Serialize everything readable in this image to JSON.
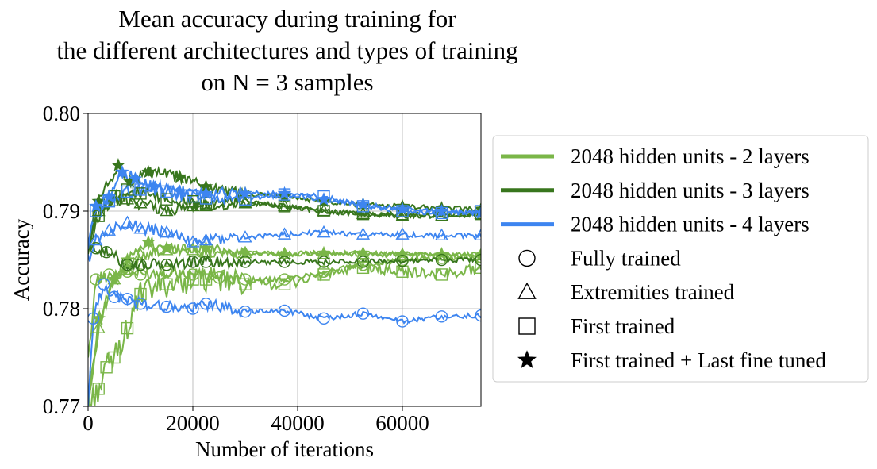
{
  "chart_data": {
    "type": "line",
    "title_lines": [
      "Mean accuracy during training for",
      "the different architectures and types of training",
      "on N = 3 samples"
    ],
    "xlabel": "Number of iterations",
    "ylabel": "Accuracy",
    "xlim": [
      0,
      75000
    ],
    "ylim": [
      0.77,
      0.8
    ],
    "xticks": [
      0,
      20000,
      40000,
      60000
    ],
    "xtick_labels": [
      "0",
      "20000",
      "40000",
      "60000"
    ],
    "yticks": [
      0.77,
      0.78,
      0.79,
      0.8
    ],
    "ytick_labels": [
      "0.77",
      "0.78",
      "0.79",
      "0.80"
    ],
    "grid": true,
    "legend_position": "outside-right",
    "colors": {
      "light_green": "#7ab648",
      "dark_green": "#38761d",
      "blue": "#3d85f0"
    },
    "legend_entries": [
      {
        "label": "2048 hidden units - 2 layers",
        "symbol": "line",
        "color": "#7ab648"
      },
      {
        "label": "2048 hidden units - 3 layers",
        "symbol": "line",
        "color": "#38761d"
      },
      {
        "label": "2048 hidden units - 4 layers",
        "symbol": "line",
        "color": "#3d85f0"
      },
      {
        "label": "Fully trained",
        "symbol": "circle",
        "color": "#000000"
      },
      {
        "label": "Extremities trained",
        "symbol": "triangle",
        "color": "#000000"
      },
      {
        "label": "First trained",
        "symbol": "square",
        "color": "#000000"
      },
      {
        "label": "First trained + Last fine tuned",
        "symbol": "star",
        "color": "#000000"
      }
    ],
    "series": [
      {
        "architecture": "2 layers",
        "training": "Fully trained",
        "color": "#7ab648",
        "marker": "circle",
        "x": [
          0,
          1500,
          4000,
          7500,
          10000,
          15000,
          20000,
          25000,
          30000,
          37500,
          45000,
          52500,
          60000,
          67500,
          75000
        ],
        "y": [
          0.7745,
          0.783,
          0.7835,
          0.7838,
          0.7835,
          0.7838,
          0.7835,
          0.7832,
          0.783,
          0.783,
          0.7838,
          0.7845,
          0.785,
          0.7852,
          0.7853
        ]
      },
      {
        "architecture": "2 layers",
        "training": "Extremities trained",
        "color": "#7ab648",
        "marker": "triangle",
        "x": [
          0,
          2000,
          5000,
          7500,
          10000,
          15000,
          20000,
          22500,
          30000,
          37500,
          45000,
          52500,
          60000,
          67500,
          75000
        ],
        "y": [
          0.77,
          0.778,
          0.783,
          0.784,
          0.7855,
          0.786,
          0.786,
          0.7858,
          0.7857,
          0.7856,
          0.7856,
          0.7856,
          0.7855,
          0.7855,
          0.7855
        ]
      },
      {
        "architecture": "2 layers",
        "training": "First trained",
        "color": "#7ab648",
        "marker": "square",
        "x": [
          0,
          2000,
          3500,
          5000,
          7500,
          10000,
          15000,
          20000,
          22500,
          30000,
          37500,
          45000,
          52500,
          60000,
          67500,
          75000
        ],
        "y": [
          0.77,
          0.7718,
          0.774,
          0.775,
          0.778,
          0.7815,
          0.7825,
          0.783,
          0.783,
          0.7825,
          0.7825,
          0.7835,
          0.7842,
          0.7838,
          0.7835,
          0.7842
        ]
      },
      {
        "architecture": "2 layers",
        "training": "First trained + Last fine tuned",
        "color": "#7ab648",
        "marker": "star",
        "x": [
          0,
          2000,
          5000,
          7500,
          11500,
          15000,
          22500,
          30000,
          37500,
          45000,
          52500,
          60000,
          67500,
          75000
        ],
        "y": [
          0.77,
          0.779,
          0.783,
          0.785,
          0.7868,
          0.7862,
          0.7862,
          0.7857,
          0.7856,
          0.7857,
          0.7857,
          0.7856,
          0.7856,
          0.7855
        ]
      },
      {
        "architecture": "3 layers",
        "training": "Fully trained",
        "color": "#38761d",
        "marker": "circle",
        "x": [
          0,
          1500,
          3500,
          7500,
          10000,
          15000,
          20000,
          22500,
          30000,
          37500,
          45000,
          52500,
          60000,
          67500,
          75000
        ],
        "y": [
          0.786,
          0.7862,
          0.7858,
          0.7845,
          0.7845,
          0.7845,
          0.7848,
          0.7848,
          0.7848,
          0.7848,
          0.7848,
          0.7848,
          0.7849,
          0.785,
          0.785
        ]
      },
      {
        "architecture": "3 layers",
        "training": "Extremities trained",
        "color": "#38761d",
        "marker": "triangle",
        "x": [
          0,
          2000,
          5000,
          7500,
          10000,
          15000,
          20000,
          22500,
          30000,
          37500,
          45000,
          52500,
          60000,
          67500,
          75000
        ],
        "y": [
          0.786,
          0.79,
          0.791,
          0.7912,
          0.7908,
          0.79,
          0.7905,
          0.7905,
          0.7908,
          0.7905,
          0.79,
          0.7897,
          0.7895,
          0.7895,
          0.7897
        ]
      },
      {
        "architecture": "3 layers",
        "training": "First trained",
        "color": "#38761d",
        "marker": "square",
        "x": [
          0,
          2000,
          5000,
          7500,
          10000,
          15000,
          20000,
          22500,
          30000,
          37500,
          45000,
          52500,
          60000,
          67500,
          75000
        ],
        "y": [
          0.786,
          0.7895,
          0.7915,
          0.7922,
          0.7918,
          0.7912,
          0.791,
          0.7908,
          0.791,
          0.7905,
          0.79,
          0.7897,
          0.7897,
          0.7896,
          0.7897
        ]
      },
      {
        "architecture": "3 layers",
        "training": "First trained + Last fine tuned",
        "color": "#38761d",
        "marker": "star",
        "x": [
          0,
          2000,
          5750,
          8000,
          11500,
          17500,
          22500,
          30000,
          37500,
          45000,
          52500,
          60000,
          67500,
          75000
        ],
        "y": [
          0.786,
          0.791,
          0.7947,
          0.793,
          0.794,
          0.7935,
          0.7925,
          0.7918,
          0.7915,
          0.791,
          0.7907,
          0.7905,
          0.7903,
          0.7902
        ]
      },
      {
        "architecture": "4 layers",
        "training": "Fully trained",
        "color": "#3d85f0",
        "marker": "circle",
        "x": [
          0,
          1000,
          3000,
          5000,
          7500,
          10000,
          15000,
          20000,
          22500,
          30000,
          37500,
          45000,
          52500,
          60000,
          67500,
          75000
        ],
        "y": [
          0.77,
          0.779,
          0.7825,
          0.7812,
          0.781,
          0.7805,
          0.7802,
          0.78,
          0.7805,
          0.7797,
          0.7798,
          0.779,
          0.7795,
          0.7787,
          0.7792,
          0.7793
        ]
      },
      {
        "architecture": "4 layers",
        "training": "Extremities trained",
        "color": "#3d85f0",
        "marker": "triangle",
        "x": [
          0,
          1500,
          4000,
          7500,
          10000,
          15000,
          20000,
          22500,
          30000,
          37500,
          45000,
          52500,
          60000,
          67500,
          75000
        ],
        "y": [
          0.785,
          0.787,
          0.788,
          0.7888,
          0.7882,
          0.7878,
          0.7868,
          0.787,
          0.7873,
          0.7876,
          0.7878,
          0.7876,
          0.7876,
          0.7875,
          0.7875
        ]
      },
      {
        "architecture": "4 layers",
        "training": "First trained",
        "color": "#3d85f0",
        "marker": "square",
        "x": [
          0,
          1500,
          4000,
          7500,
          10000,
          15000,
          20000,
          22500,
          30000,
          37500,
          45000,
          52500,
          60000,
          67500,
          75000
        ],
        "y": [
          0.7865,
          0.79,
          0.791,
          0.792,
          0.7922,
          0.792,
          0.7915,
          0.7913,
          0.7912,
          0.7917,
          0.7915,
          0.7905,
          0.79,
          0.7898,
          0.79
        ]
      },
      {
        "architecture": "4 layers",
        "training": "First trained + Last fine tuned",
        "color": "#3d85f0",
        "marker": "star",
        "x": [
          0,
          1500,
          4000,
          6500,
          9000,
          12500,
          17500,
          22500,
          30000,
          37500,
          45000,
          52500,
          60000,
          67500,
          75000
        ],
        "y": [
          0.7865,
          0.7905,
          0.7915,
          0.794,
          0.7933,
          0.7925,
          0.792,
          0.7918,
          0.7918,
          0.7918,
          0.7912,
          0.7907,
          0.7902,
          0.79,
          0.7898
        ]
      }
    ]
  }
}
